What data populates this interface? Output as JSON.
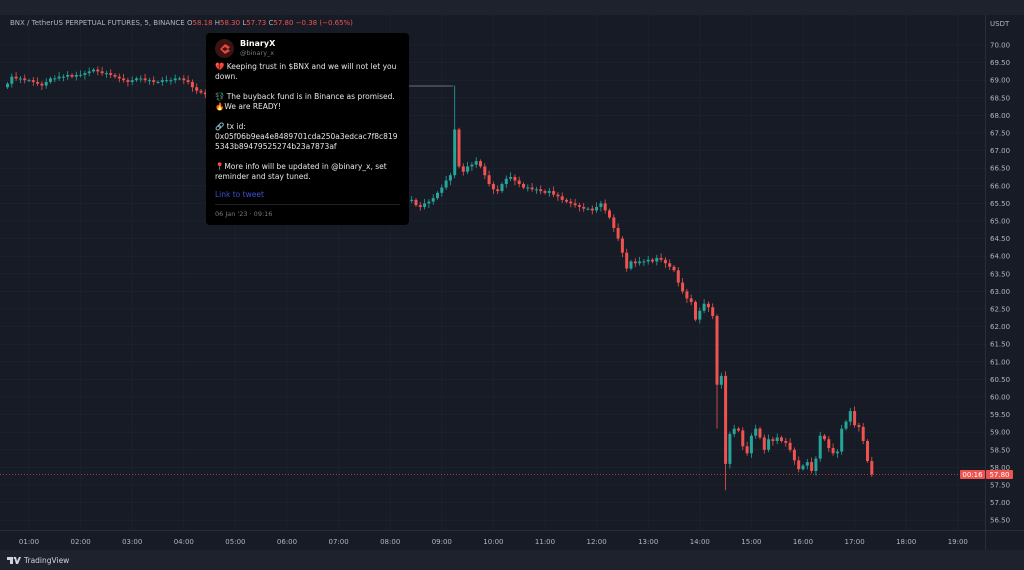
{
  "legend": {
    "symbol": "BNX / TetherUS PERPETUAL FUTURES, 5, BINANCE",
    "o_label": "O",
    "o": "58.18",
    "h_label": "H",
    "h": "58.30",
    "l_label": "L",
    "l": "57.73",
    "c_label": "C",
    "c": "57.80",
    "change": "−0.38 (−0.65%)"
  },
  "tweet": {
    "name": "BinaryX",
    "handle": "@binary_x",
    "line1": "💔 Keeping trust in $BNX and we will not let you down.",
    "line2": "💱 The buyback fund is in Binance as promised.",
    "line3": "🔥We are READY!",
    "line4": "🔗 tx id:",
    "line5": "0x05f06b9ea4e8489701cda250a3edcac7f8c8195343b89479525274b23a7873af",
    "line6": "📍More info will be updated in @binary_x, set reminder and stay tuned.",
    "link": "Link to tweet",
    "date": "06 Jan '23 · 09:16"
  },
  "footer": {
    "brand": "TradingView"
  },
  "colors": {
    "up": "#26a69a",
    "down": "#ef5350",
    "background": "#171b26",
    "grid": "#1f2431",
    "tweet_bg": "#000000"
  },
  "chart_data": {
    "type": "candlestick",
    "interval_minutes": 5,
    "start_time": "00:35",
    "currency_label": "USDT",
    "ylim": [
      56.2,
      70.3
    ],
    "yticks": [
      "70.00",
      "69.50",
      "69.00",
      "68.50",
      "68.00",
      "67.50",
      "67.00",
      "66.50",
      "66.00",
      "65.50",
      "65.00",
      "64.50",
      "64.00",
      "63.50",
      "63.00",
      "62.50",
      "62.00",
      "61.50",
      "61.00",
      "60.50",
      "60.00",
      "59.50",
      "59.00",
      "58.50",
      "58.00",
      "57.50",
      "57.00",
      "56.50"
    ],
    "xticks": [
      "01:00",
      "02:00",
      "03:00",
      "04:00",
      "05:00",
      "06:00",
      "07:00",
      "08:00",
      "09:00",
      "10:00",
      "11:00",
      "12:00",
      "13:00",
      "14:00",
      "15:00",
      "16:00",
      "17:00",
      "18:00",
      "19:00"
    ],
    "grid": true,
    "first_open": 68.8,
    "closes": [
      68.9,
      69.1,
      69.05,
      69.05,
      69.0,
      69.0,
      68.95,
      68.9,
      68.85,
      68.95,
      69.05,
      69.05,
      69.1,
      69.1,
      69.15,
      69.1,
      69.15,
      69.15,
      69.2,
      69.25,
      69.3,
      69.25,
      69.2,
      69.2,
      69.15,
      69.1,
      69.05,
      69.0,
      68.95,
      69.0,
      69.05,
      69.05,
      69.0,
      69.0,
      68.95,
      68.95,
      69.0,
      69.0,
      69.0,
      69.05,
      69.05,
      69.0,
      68.95,
      68.8,
      68.7,
      68.65,
      68.6,
      null,
      null,
      null,
      null,
      null,
      null,
      null,
      null,
      null,
      null,
      null,
      null,
      null,
      null,
      null,
      null,
      null,
      null,
      null,
      null,
      null,
      null,
      null,
      null,
      null,
      null,
      null,
      null,
      null,
      null,
      null,
      null,
      null,
      null,
      null,
      null,
      null,
      null,
      null,
      null,
      null,
      null,
      null,
      null,
      null,
      null,
      null,
      65.6,
      65.45,
      65.4,
      65.5,
      65.55,
      65.65,
      65.8,
      65.95,
      66.15,
      66.3,
      67.6,
      66.55,
      66.4,
      66.55,
      66.6,
      66.7,
      66.55,
      66.3,
      66.05,
      65.9,
      65.85,
      66.05,
      66.2,
      66.25,
      66.15,
      66.05,
      65.95,
      65.95,
      65.9,
      65.9,
      65.85,
      65.8,
      65.85,
      65.75,
      65.7,
      65.6,
      65.55,
      65.5,
      65.45,
      65.4,
      65.35,
      65.35,
      65.3,
      65.4,
      65.5,
      65.3,
      65.1,
      64.8,
      64.5,
      64.1,
      63.65,
      63.85,
      63.8,
      63.85,
      63.85,
      63.9,
      63.85,
      63.95,
      63.9,
      63.8,
      63.7,
      63.6,
      63.25,
      63.0,
      62.8,
      62.7,
      62.2,
      62.45,
      62.65,
      62.55,
      62.3,
      60.35,
      60.6,
      58.1,
      58.95,
      59.1,
      59.05,
      58.6,
      58.4,
      58.9,
      59.1,
      58.85,
      58.5,
      58.8,
      58.75,
      58.85,
      58.75,
      58.7,
      58.5,
      58.2,
      57.95,
      58.05,
      58.15,
      57.9,
      58.25,
      58.9,
      58.8,
      58.55,
      58.4,
      58.45,
      59.1,
      59.3,
      59.6,
      59.2,
      59.15,
      58.75,
      58.18,
      57.8
    ],
    "wick_extremes": [
      {
        "time": "09:15",
        "high": 68.85
      },
      {
        "time": "14:30",
        "low": 57.35
      },
      {
        "time": "14:20",
        "low": 59.1
      },
      {
        "time": "17:20",
        "high": 58.3,
        "low": 57.73
      }
    ],
    "last_price": {
      "value": "57.80",
      "countdown": "00:16"
    }
  }
}
